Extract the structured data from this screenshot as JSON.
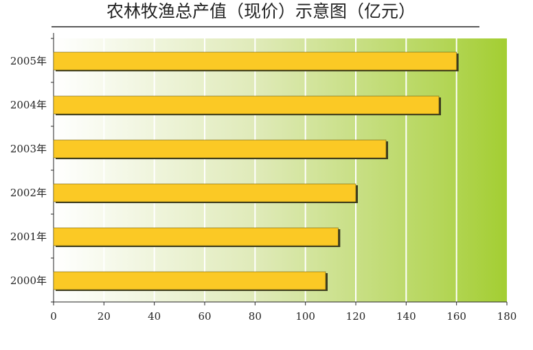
{
  "chart_data": {
    "type": "hbar",
    "title": "农林牧渔总产值（现价）示意图（亿元）",
    "categories": [
      "2005年",
      "2004年",
      "2003年",
      "2002年",
      "2001年",
      "2000年"
    ],
    "values": [
      160,
      153,
      132,
      120,
      113,
      108
    ],
    "color": "#fbc925",
    "xlim": [
      0,
      180
    ],
    "xticks": [
      0,
      20,
      40,
      60,
      80,
      100,
      120,
      140,
      160,
      180
    ],
    "grid": true
  }
}
